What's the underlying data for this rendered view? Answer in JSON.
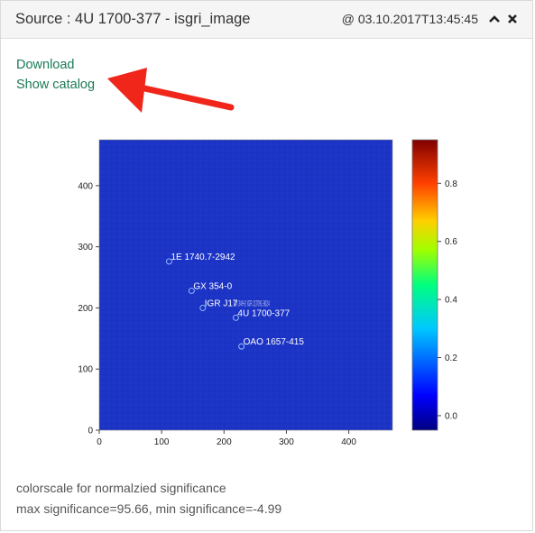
{
  "panel": {
    "title": "Source : 4U 1700-377 - isgri_image",
    "timestamp": "@ 03.10.2017T13:45:45"
  },
  "links": {
    "download": "Download",
    "show_catalog": "Show catalog"
  },
  "chart_data": {
    "type": "heatmap",
    "x_ticks": [
      "0",
      "100",
      "200",
      "300",
      "400"
    ],
    "y_ticks": [
      "0",
      "100",
      "200",
      "300",
      "400"
    ],
    "xlim": [
      0,
      470
    ],
    "ylim": [
      0,
      475
    ],
    "colorbar": {
      "ticks": [
        "0.0",
        "0.2",
        "0.4",
        "0.6",
        "0.8"
      ],
      "range": [
        -0.05,
        0.95
      ],
      "colors": [
        "#000080",
        "#0000ff",
        "#00ffff",
        "#00ff00",
        "#ffff00",
        "#ff8000",
        "#ff0000",
        "#800000"
      ]
    },
    "background_color": "#1c34c6",
    "sources": [
      {
        "name": "1E 1740.7-2942",
        "x": 112,
        "y": 276
      },
      {
        "name": "GX 354-0",
        "x": 148,
        "y": 228
      },
      {
        "name": "IGR J17",
        "x": 166,
        "y": 200
      },
      {
        "name": "4U 1700-377",
        "x": 219,
        "y": 184
      },
      {
        "name": "OAO 1657-415",
        "x": 228,
        "y": 137
      }
    ],
    "overlap_text": "GX 349+2 IGR J17091-3624"
  },
  "caption": {
    "line1": "colorscale for normalzied significance",
    "line2": "max significance=95.66, min significance=-4.99"
  }
}
